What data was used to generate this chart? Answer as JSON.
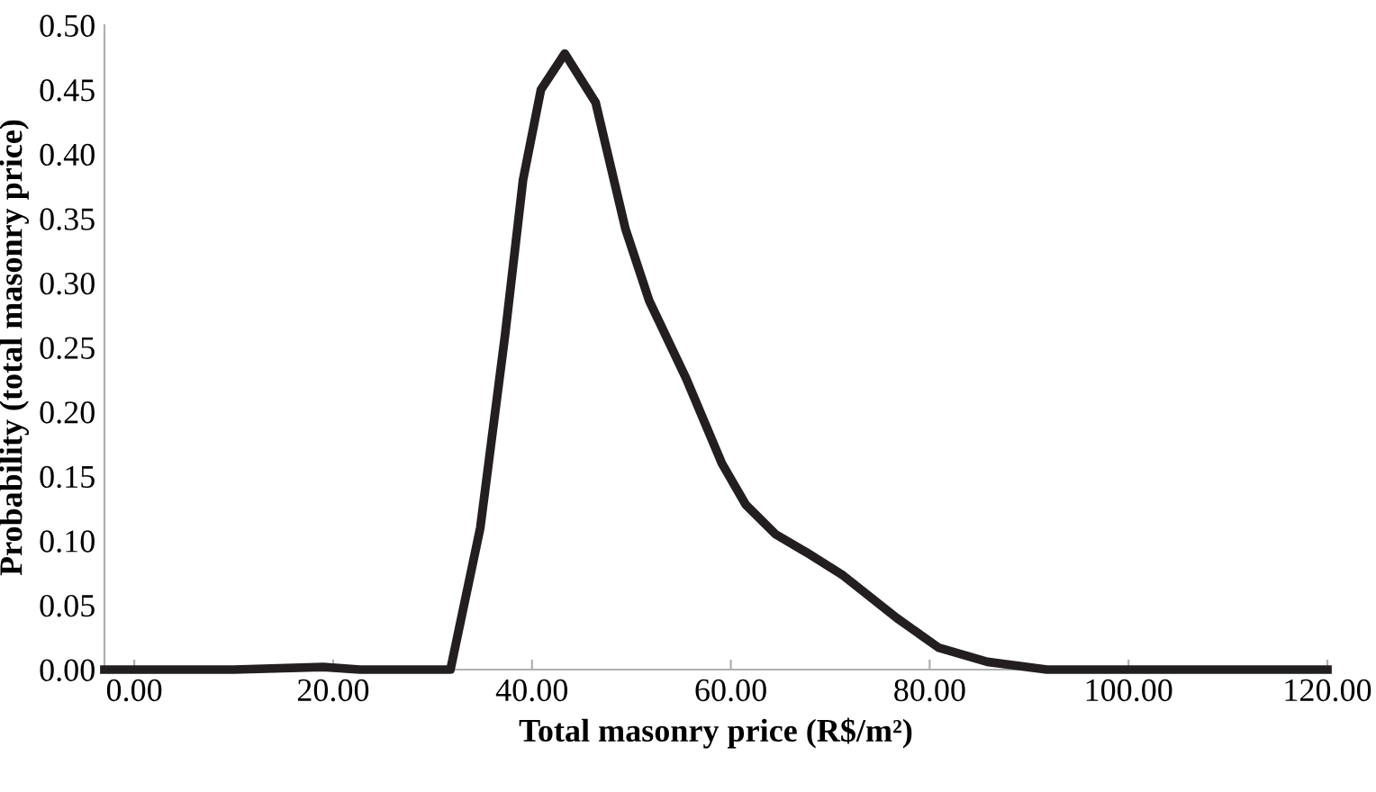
{
  "chart_data": {
    "type": "line",
    "xlabel": "Total masonry price (R$/m²)",
    "ylabel": "Probability (total masonry price)",
    "series": [
      {
        "color": "#231f20",
        "x": [
          -3,
          10,
          19,
          22.7,
          25,
          29,
          31.8,
          34.8,
          37.3,
          39.1,
          40.9,
          43.3,
          46.4,
          49.4,
          51.8,
          55.5,
          59.1,
          61.5,
          64.5,
          67.6,
          71.3,
          76.7,
          80.9,
          85.8,
          91.8,
          100,
          120
        ],
        "values": [
          0,
          0,
          0.002,
          0,
          0,
          0,
          0,
          0.11,
          0.26,
          0.38,
          0.45,
          0.478,
          0.44,
          0.342,
          0.286,
          0.226,
          0.16,
          0.128,
          0.105,
          0.091,
          0.073,
          0.04,
          0.017,
          0.006,
          0,
          0,
          0
        ]
      }
    ],
    "xlim": [
      -3,
      120
    ],
    "ylim": [
      0,
      0.5
    ],
    "xticks": [
      {
        "value": 0,
        "label": "0.00"
      },
      {
        "value": 20,
        "label": "20.00"
      },
      {
        "value": 40,
        "label": "40.00"
      },
      {
        "value": 60,
        "label": "60.00"
      },
      {
        "value": 80,
        "label": "80.00"
      },
      {
        "value": 100,
        "label": "100.00"
      },
      {
        "value": 120,
        "label": "120.00"
      }
    ],
    "yticks": [
      {
        "value": 0,
        "label": "0.00"
      },
      {
        "value": 0.05,
        "label": "0.05"
      },
      {
        "value": 0.1,
        "label": "0.10"
      },
      {
        "value": 0.15,
        "label": "0.15"
      },
      {
        "value": 0.2,
        "label": "0.20"
      },
      {
        "value": 0.25,
        "label": "0.25"
      },
      {
        "value": 0.3,
        "label": "0.30"
      },
      {
        "value": 0.35,
        "label": "0.35"
      },
      {
        "value": 0.4,
        "label": "0.40"
      },
      {
        "value": 0.45,
        "label": "0.45"
      },
      {
        "value": 0.5,
        "label": "0.50"
      }
    ],
    "grid": false,
    "legend": false
  }
}
